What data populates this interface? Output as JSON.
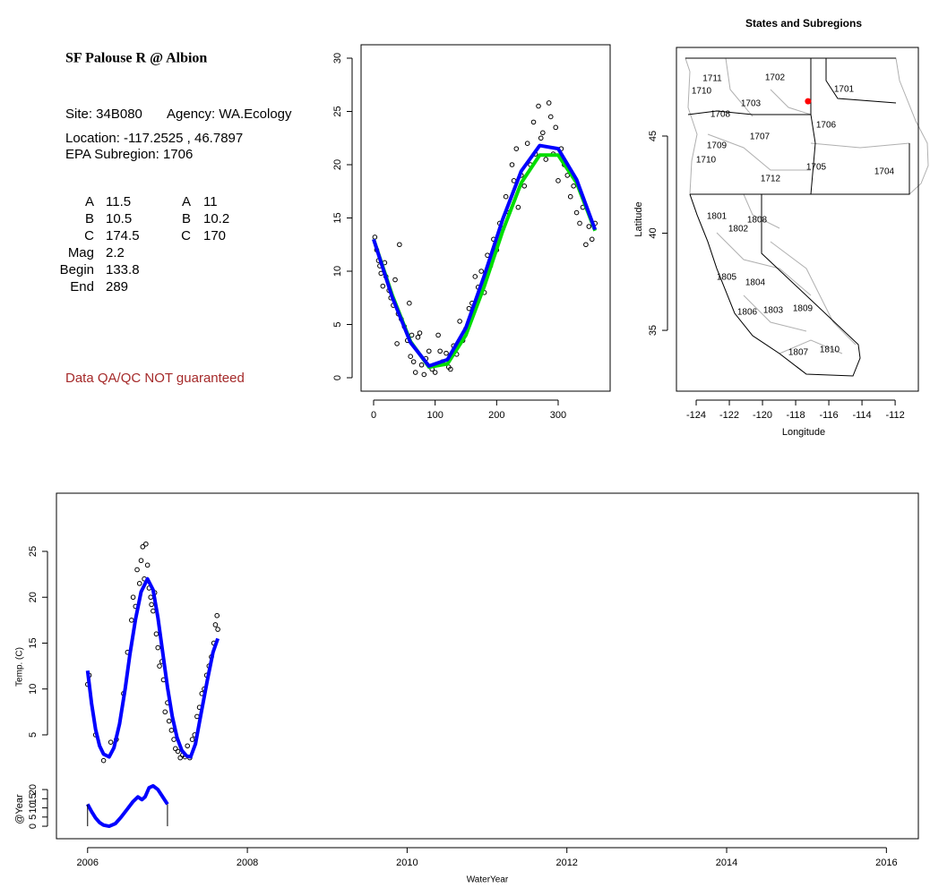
{
  "info": {
    "title": "SF Palouse R @ Albion",
    "site": "Site: 34B080",
    "agency": "Agency: WA.Ecology",
    "location": "Location: -117.2525 , 46.7897",
    "subregion": "EPA Subregion: 1706",
    "params": [
      [
        "A",
        "11.5",
        "A",
        "11"
      ],
      [
        "B",
        "10.5",
        "B",
        "10.2"
      ],
      [
        "C",
        "174.5",
        "C",
        "170"
      ],
      [
        "Mag",
        "2.2"
      ],
      [
        "Begin",
        "133.8"
      ],
      [
        "End",
        "289"
      ]
    ],
    "note": "Data QA/QC NOT guaranteed"
  },
  "chart_data": [
    {
      "type": "scatter",
      "xlim": [
        -20.4,
        384.5
      ],
      "ylim": [
        -1.26,
        31.26
      ],
      "xticks": [
        0,
        100,
        200,
        300
      ],
      "yticks": [
        0,
        5,
        10,
        15,
        20,
        25,
        30
      ],
      "point_color": "#000000",
      "points": {
        "x": [
          2,
          5,
          8,
          10,
          12,
          15,
          18,
          20,
          25,
          28,
          32,
          35,
          38,
          40,
          42,
          45,
          50,
          55,
          58,
          60,
          62,
          65,
          68,
          72,
          75,
          78,
          82,
          85,
          90,
          95,
          100,
          105,
          108,
          112,
          118,
          122,
          125,
          130,
          135,
          140,
          145,
          150,
          155,
          160,
          165,
          170,
          175,
          180,
          185,
          190,
          195,
          200,
          205,
          210,
          215,
          220,
          225,
          228,
          232,
          235,
          240,
          245,
          250,
          255,
          260,
          263,
          268,
          272,
          275,
          280,
          285,
          288,
          292,
          296,
          300,
          305,
          310,
          315,
          320,
          325,
          330,
          335,
          340,
          345,
          350,
          355,
          360
        ],
        "y": [
          13.2,
          12,
          11,
          10.5,
          9.8,
          8.6,
          10.8,
          9.5,
          8.2,
          7.5,
          6.8,
          9.2,
          3.2,
          6,
          12.5,
          5.5,
          4.8,
          3.5,
          7,
          2,
          4,
          1.5,
          0.5,
          3.8,
          4.2,
          1.2,
          0.3,
          1.8,
          2.5,
          0.8,
          0.5,
          4,
          2.5,
          1.5,
          2.3,
          1,
          0.8,
          3,
          2.2,
          5.3,
          3.5,
          4.6,
          6.5,
          7,
          9.5,
          8.5,
          10,
          8,
          11.5,
          10.5,
          13,
          12,
          14.5,
          14,
          17,
          15.5,
          20,
          18.5,
          21.5,
          16,
          19,
          18,
          22,
          20,
          24,
          21,
          25.5,
          22.5,
          23,
          20.5,
          25.8,
          24.5,
          21,
          23.5,
          18.5,
          21.5,
          20,
          19,
          17,
          18,
          15.5,
          14.5,
          16,
          12.5,
          14.2,
          13,
          14.5
        ]
      },
      "series": [
        {
          "color": "#00dd00",
          "x": [
            0,
            30,
            60,
            90,
            120,
            150,
            180,
            210,
            240,
            270,
            300,
            330,
            360
          ],
          "values": [
            13.0,
            7.8,
            3.4,
            1.0,
            1.3,
            4.0,
            8.6,
            13.8,
            18.3,
            20.9,
            20.9,
            18.3,
            13.8
          ]
        },
        {
          "color": "#0000ff",
          "x": [
            0,
            30,
            60,
            90,
            120,
            150,
            180,
            210,
            240,
            270,
            300,
            330,
            360
          ],
          "values": [
            13.0,
            7.6,
            3.3,
            1.1,
            1.7,
            4.7,
            9.6,
            14.9,
            19.4,
            21.8,
            21.5,
            18.6,
            13.9
          ]
        }
      ]
    },
    {
      "type": "map",
      "title": "States and Subregions",
      "xlabel": "Longitude",
      "ylabel": "Latitude",
      "xlim": [
        -125.19,
        -110.6
      ],
      "ylim": [
        31.87,
        49.56
      ],
      "xticks": [
        -124,
        -122,
        -120,
        -118,
        -116,
        -114,
        -112
      ],
      "yticks": [
        35,
        40,
        45
      ],
      "regions": [
        "1711",
        "1702",
        "1701",
        "1710",
        "1703",
        "1708",
        "1706",
        "1707",
        "1709",
        "1710",
        "1705",
        "1704",
        "1712",
        "1801",
        "1808",
        "1802",
        "1805",
        "1804",
        "1806",
        "1803",
        "1809",
        "1807",
        "1810"
      ],
      "site": {
        "x": -117.2525,
        "y": 46.7897,
        "color": "#ff0000"
      }
    },
    {
      "type": "timeseries",
      "xlabel": "WaterYear",
      "ylabel": "Temp. (C)",
      "y2label": "@Year",
      "xlim": [
        2005.61,
        2016.4
      ],
      "ylim": [
        -6.32,
        31.34
      ],
      "y2lim": [
        -6.8,
        181.5
      ],
      "xticks": [
        2006,
        2008,
        2010,
        2012,
        2014,
        2016
      ],
      "yticks": [
        5,
        10,
        15,
        20,
        25
      ],
      "y2ticks": [
        0,
        5,
        10,
        15,
        20
      ],
      "point_color": "#000000",
      "points": {
        "x": [
          2006.0,
          2006.02,
          2006.1,
          2006.2,
          2006.29,
          2006.36,
          2006.45,
          2006.5,
          2006.55,
          2006.57,
          2006.6,
          2006.62,
          2006.65,
          2006.67,
          2006.69,
          2006.71,
          2006.73,
          2006.75,
          2006.77,
          2006.79,
          2006.8,
          2006.82,
          2006.84,
          2006.86,
          2006.88,
          2006.9,
          2006.93,
          2006.95,
          2006.97,
          2007.0,
          2007.02,
          2007.05,
          2007.08,
          2007.1,
          2007.13,
          2007.16,
          2007.19,
          2007.22,
          2007.25,
          2007.28,
          2007.31,
          2007.34,
          2007.37,
          2007.4,
          2007.43,
          2007.46,
          2007.49,
          2007.52,
          2007.55,
          2007.58,
          2007.6,
          2007.62,
          2007.63
        ],
        "y": [
          10.5,
          11.5,
          5,
          2.2,
          4.2,
          4.5,
          9.5,
          14,
          17.5,
          20,
          19,
          23,
          21.5,
          24,
          25.5,
          22,
          25.8,
          23.5,
          21,
          20,
          19.2,
          18.5,
          20.5,
          16,
          14.5,
          12.5,
          13,
          11,
          7.5,
          8.5,
          6.5,
          5.5,
          4.5,
          3.5,
          3.2,
          2.5,
          2.8,
          2.6,
          3.8,
          2.5,
          4.5,
          5,
          7,
          8,
          9.5,
          10,
          11.5,
          12.5,
          13.5,
          15,
          17,
          18,
          16.5
        ]
      },
      "series": [
        {
          "color": "#0000ff",
          "x": [
            2006.0,
            2006.05,
            2006.1,
            2006.15,
            2006.2,
            2006.27,
            2006.33,
            2006.4,
            2006.47,
            2006.53,
            2006.6,
            2006.67,
            2006.75,
            2006.82,
            2006.88,
            2006.94,
            2007.0,
            2007.06,
            2007.12,
            2007.18,
            2007.24,
            2007.29,
            2007.35,
            2007.42,
            2007.5,
            2007.57,
            2007.63
          ],
          "values": [
            12,
            8.4,
            5.6,
            3.8,
            2.9,
            2.6,
            3.6,
            6.2,
            10,
            13.8,
            17.6,
            20.6,
            22,
            20.8,
            17.8,
            14,
            10.2,
            7,
            4.7,
            3.3,
            2.7,
            2.6,
            4,
            7.3,
            11,
            14,
            15.5
          ]
        },
        {
          "color": "#0000ff",
          "axis": "y2",
          "x": [
            2006.0,
            2006.05,
            2006.1,
            2006.15,
            2006.2,
            2006.27,
            2006.35,
            2006.42,
            2006.5,
            2006.57,
            2006.63,
            2006.68,
            2006.72,
            2006.77,
            2006.82,
            2006.88,
            2006.94,
            2007.0
          ],
          "values": [
            12,
            8,
            4.5,
            2,
            0.6,
            0,
            1.5,
            5,
            9.5,
            13.5,
            16,
            14.5,
            16,
            21,
            22,
            20,
            16,
            12
          ]
        }
      ]
    }
  ]
}
